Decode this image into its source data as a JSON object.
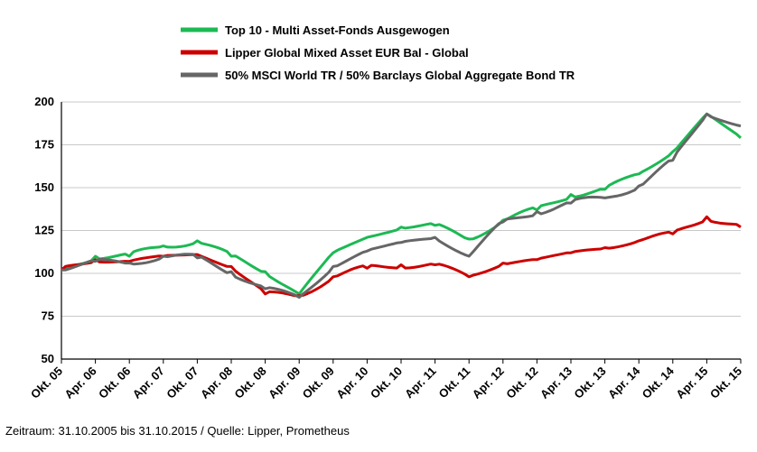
{
  "chart_data": {
    "type": "line",
    "title": "",
    "xlabel": "",
    "ylabel": "",
    "ylim": [
      50,
      200
    ],
    "yticks": [
      50,
      75,
      100,
      125,
      150,
      175,
      200
    ],
    "grid": "horizontal",
    "legend_position": "top",
    "xticks": [
      "Okt. 05",
      "Apr. 06",
      "Okt. 06",
      "Apr. 07",
      "Okt. 07",
      "Apr. 08",
      "Okt. 08",
      "Apr. 09",
      "Okt. 09",
      "Apr. 10",
      "Okt. 10",
      "Apr. 11",
      "Okt. 11",
      "Apr. 12",
      "Okt. 12",
      "Apr. 13",
      "Okt. 13",
      "Apr. 14",
      "Okt. 14",
      "Apr. 15",
      "Okt. 15"
    ],
    "x": [
      0,
      1,
      2,
      3,
      4,
      5,
      6,
      7,
      8,
      9,
      10,
      11,
      12,
      13,
      14,
      15,
      16,
      17,
      18,
      19,
      20
    ],
    "series": [
      {
        "name": "Top 10 - Multi Asset-Fonds Ausgewogen",
        "color": "#1db954",
        "values": [
          102,
          110,
          110,
          116,
          119,
          110,
          101,
          88,
          112,
          121,
          127,
          128,
          120,
          131,
          137,
          146,
          149,
          158,
          171,
          193,
          179
        ]
      },
      {
        "name": "Lipper Global Mixed Asset EUR Bal - Global",
        "color": "#cc0000",
        "values": [
          102,
          108,
          107,
          110,
          111,
          104,
          88,
          87,
          98,
          103,
          105,
          105,
          98,
          106,
          108,
          112,
          115,
          119,
          123,
          133,
          127
        ]
      },
      {
        "name": "50% MSCI World TR / 50% Barclays Global Aggregate Bond TR",
        "color": "#666666",
        "values": [
          102,
          107,
          106,
          110,
          109,
          101,
          91,
          86,
          104,
          113,
          118,
          121,
          110,
          130,
          136,
          141,
          144,
          151,
          166,
          193,
          186
        ]
      }
    ]
  },
  "footer": "Zeitraum: 31.10.2005 bis 31.10.2015 / Quelle: Lipper, Prometheus"
}
